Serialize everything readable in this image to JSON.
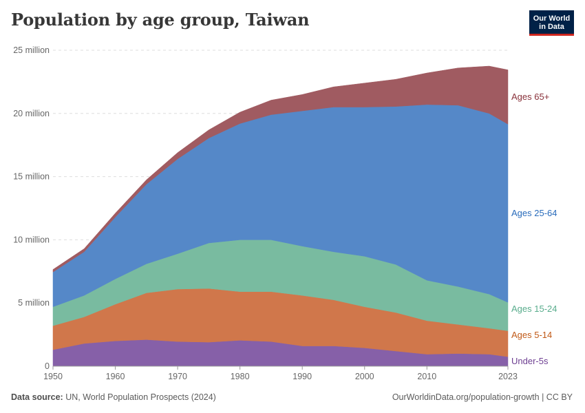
{
  "title": "Population by age group, Taiwan",
  "logo": {
    "line1": "Our World",
    "line2": "in Data"
  },
  "footer": {
    "source_label": "Data source:",
    "source_text": "UN, World Population Prospects (2024)",
    "link": "OurWorldinData.org/population-growth | CC BY"
  },
  "chart_data": {
    "type": "area",
    "stacked": true,
    "title": "Population by age group, Taiwan",
    "xlim": [
      1950,
      2023
    ],
    "ylim": [
      0,
      25000000
    ],
    "x_ticks": [
      {
        "value": 1950,
        "label": "1950"
      },
      {
        "value": 1960,
        "label": "1960"
      },
      {
        "value": 1970,
        "label": "1970"
      },
      {
        "value": 1980,
        "label": "1980"
      },
      {
        "value": 1990,
        "label": "1990"
      },
      {
        "value": 2000,
        "label": "2000"
      },
      {
        "value": 2010,
        "label": "2010"
      },
      {
        "value": 2023,
        "label": "2023"
      }
    ],
    "y_ticks": [
      {
        "value": 0,
        "label": "0"
      },
      {
        "value": 5000000,
        "label": "5 million"
      },
      {
        "value": 10000000,
        "label": "10 million"
      },
      {
        "value": 15000000,
        "label": "15 million"
      },
      {
        "value": 20000000,
        "label": "20 million"
      },
      {
        "value": 25000000,
        "label": "25 million"
      }
    ],
    "x": [
      1950,
      1955,
      1960,
      1965,
      1970,
      1975,
      1980,
      1985,
      1990,
      1995,
      2000,
      2005,
      2010,
      2015,
      2020,
      2023
    ],
    "series": [
      {
        "name": "Under-5s",
        "label": "Under-5s",
        "color": "#8660a8",
        "label_color": "#6d3e91",
        "values": [
          1.3,
          1.8,
          2.0,
          2.1,
          1.95,
          1.9,
          2.05,
          1.95,
          1.6,
          1.6,
          1.45,
          1.2,
          0.95,
          1.0,
          0.95,
          0.75
        ]
      },
      {
        "name": "Ages 5-14",
        "label": "Ages 5-14",
        "color": "#d0774b",
        "label_color": "#c05917",
        "values": [
          1.9,
          2.1,
          2.9,
          3.7,
          4.15,
          4.25,
          3.85,
          3.95,
          4.0,
          3.65,
          3.25,
          3.05,
          2.65,
          2.3,
          2.05,
          2.05
        ]
      },
      {
        "name": "Ages 15-24",
        "label": "Ages 15-24",
        "color": "#79bba0",
        "label_color": "#58ac8c",
        "values": [
          1.5,
          1.7,
          2.0,
          2.3,
          2.8,
          3.6,
          4.1,
          4.1,
          3.9,
          3.8,
          4.0,
          3.8,
          3.2,
          3.0,
          2.7,
          2.25
        ]
      },
      {
        "name": "Ages 25-64",
        "label": "Ages 25-64",
        "color": "#5588c8",
        "label_color": "#286bbb",
        "values": [
          2.75,
          3.45,
          4.9,
          6.3,
          7.5,
          8.3,
          9.2,
          9.9,
          10.7,
          11.45,
          11.8,
          12.5,
          13.9,
          14.35,
          14.3,
          14.1
        ]
      },
      {
        "name": "Ages 65+",
        "label": "Ages 65+",
        "color": "#a05b61",
        "label_color": "#883039",
        "values": [
          0.2,
          0.25,
          0.3,
          0.35,
          0.5,
          0.65,
          0.9,
          1.15,
          1.3,
          1.6,
          1.9,
          2.15,
          2.5,
          2.95,
          3.75,
          4.3
        ]
      }
    ],
    "values_unit": "million"
  }
}
